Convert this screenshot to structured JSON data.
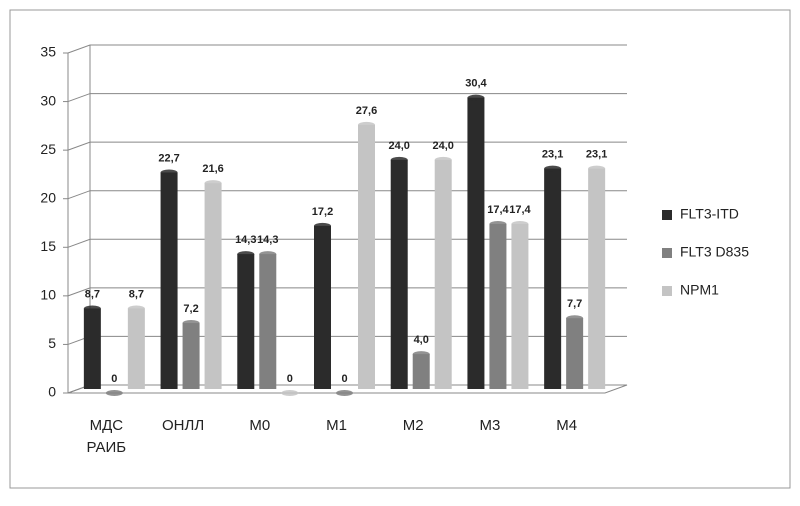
{
  "chart_data": {
    "type": "bar",
    "categories": [
      "МДС РАИБ",
      "ОНЛЛ",
      "М0",
      "М1",
      "М2",
      "М3",
      "М4"
    ],
    "series": [
      {
        "name": "FLT3-ITD",
        "color": "#2b2b2b",
        "values": [
          8.7,
          22.7,
          14.3,
          17.2,
          24.0,
          30.4,
          23.1
        ],
        "value_labels": [
          "8,7",
          "22,7",
          "14,3",
          "17,2",
          "24,0",
          "30,4",
          "23,1"
        ]
      },
      {
        "name": "FLT3 D835",
        "color": "#808080",
        "values": [
          0,
          7.2,
          14.3,
          0,
          4.0,
          17.4,
          7.7
        ],
        "value_labels": [
          "0",
          "7,2",
          "14,3",
          "0",
          "4,0",
          "17,4",
          "7,7"
        ]
      },
      {
        "name": "NPM1",
        "color": "#c4c4c4",
        "values": [
          8.7,
          21.6,
          0,
          27.6,
          24.0,
          17.4,
          23.1
        ],
        "value_labels": [
          "8,7",
          "21,6",
          "0",
          "27,6",
          "24,0",
          "17,4",
          "23,1"
        ]
      }
    ],
    "ylim": [
      0,
      35
    ],
    "yticks": [
      0,
      5,
      10,
      15,
      20,
      25,
      30,
      35
    ],
    "grid": true,
    "legend": "right"
  }
}
